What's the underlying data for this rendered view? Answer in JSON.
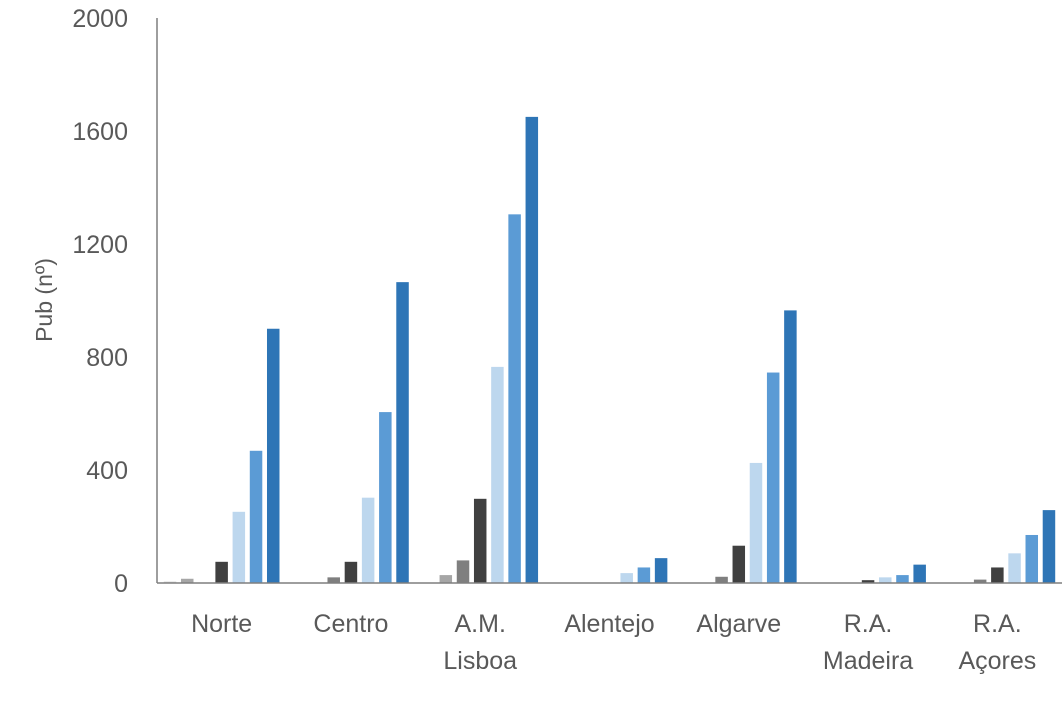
{
  "chart_data": {
    "type": "bar",
    "title": "",
    "xlabel": "",
    "ylabel": "Pub (nº)",
    "ylim": [
      0,
      2000
    ],
    "yticks": [
      "0",
      "400",
      "800",
      "1200",
      "1600",
      "2000"
    ],
    "grid": false,
    "categories": [
      [
        "Norte"
      ],
      [
        "Centro"
      ],
      [
        "A.M.",
        "Lisboa"
      ],
      [
        "Alentejo"
      ],
      [
        "Algarve"
      ],
      [
        "R.A.",
        "Madeira"
      ],
      [
        "R.A.",
        "Açores"
      ]
    ],
    "series": [
      {
        "color": "#d0d0d0",
        "values": [
          5,
          0,
          0,
          0,
          0,
          0,
          0
        ]
      },
      {
        "color": "#a6a6a6",
        "values": [
          15,
          0,
          28,
          0,
          0,
          0,
          0
        ]
      },
      {
        "color": "#7f7f7f",
        "values": [
          0,
          20,
          80,
          0,
          22,
          0,
          12
        ]
      },
      {
        "color": "#404040",
        "values": [
          75,
          75,
          298,
          0,
          132,
          10,
          55
        ]
      },
      {
        "color": "#bdd7ee",
        "values": [
          252,
          302,
          765,
          35,
          425,
          20,
          105
        ]
      },
      {
        "color": "#5b9bd5",
        "values": [
          468,
          605,
          1305,
          55,
          745,
          28,
          170
        ]
      },
      {
        "color": "#2e75b6",
        "values": [
          900,
          1065,
          1650,
          88,
          965,
          65,
          258
        ]
      }
    ]
  }
}
